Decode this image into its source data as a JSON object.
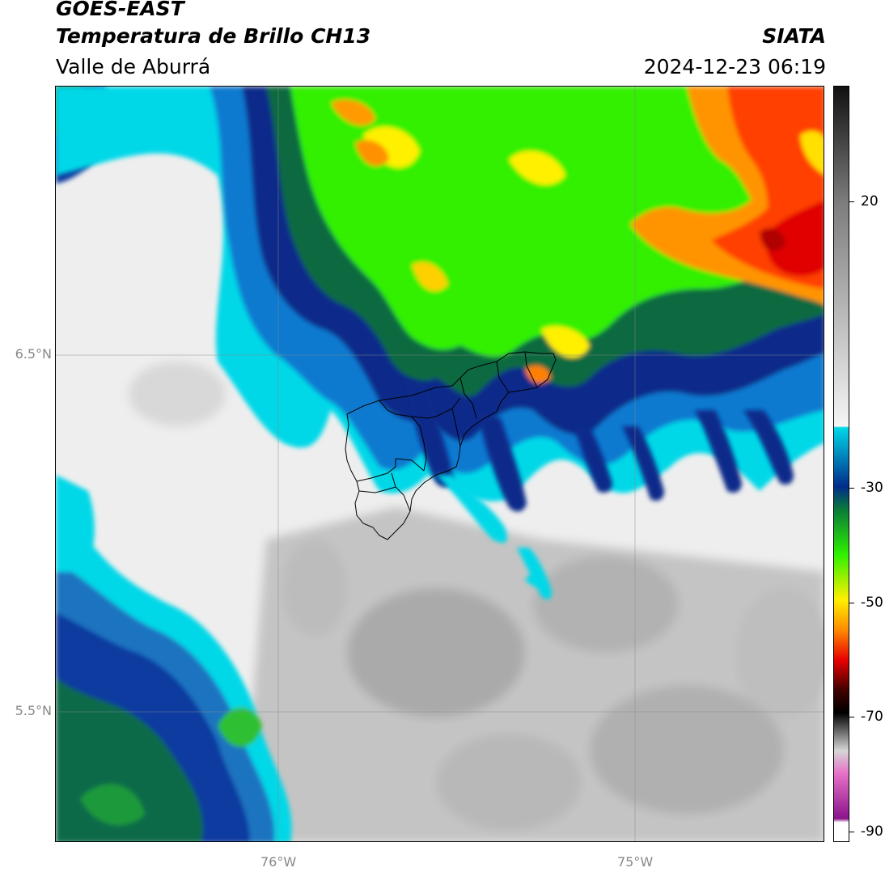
{
  "header": {
    "satellite": "GOES-EAST",
    "product": "Temperatura de Brillo CH13",
    "region": "Valle de Aburrá",
    "agency": "SIATA",
    "datetime": "2024-12-23 06:19"
  },
  "axes": {
    "lat_labels": [
      "6.5°N",
      "5.5°N"
    ],
    "lon_labels": [
      "76°W",
      "75°W"
    ]
  },
  "colorbar": {
    "labels": [
      "20",
      "-30",
      "-50",
      "-70",
      "-90"
    ],
    "stops": [
      {
        "v": "top",
        "color": "#111111"
      },
      {
        "v": "20",
        "color": "#7d7d7d"
      },
      {
        "v": "-20",
        "color": "#f5f5f5"
      },
      {
        "v": "-21",
        "color": "#00d8e8"
      },
      {
        "v": "-30",
        "color": "#002c8c"
      },
      {
        "v": "-35",
        "color": "#0a7a3a"
      },
      {
        "v": "-42",
        "color": "#2ef000"
      },
      {
        "v": "-50",
        "color": "#fff000"
      },
      {
        "v": "-55",
        "color": "#ff8a00"
      },
      {
        "v": "-62",
        "color": "#e80000"
      },
      {
        "v": "-68",
        "color": "#400000"
      },
      {
        "v": "-70",
        "color": "#000000"
      },
      {
        "v": "-78",
        "color": "#d6d6d6"
      },
      {
        "v": "-82",
        "color": "#e672c8"
      },
      {
        "v": "-88",
        "color": "#8a148a"
      },
      {
        "v": "-90",
        "color": "#ffffff"
      }
    ]
  }
}
